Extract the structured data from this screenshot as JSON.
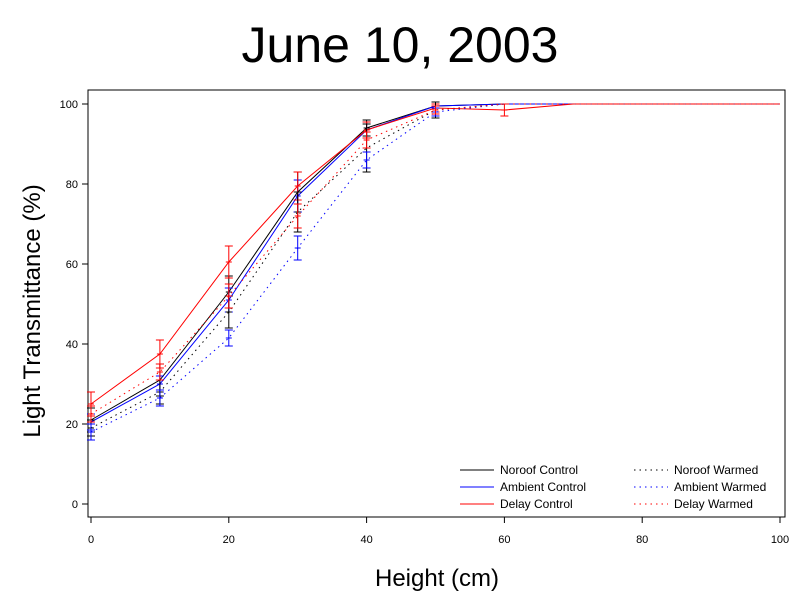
{
  "chart_data": {
    "type": "line",
    "title": "June 10, 2003",
    "xlabel": "Height (cm)",
    "ylabel": "Light Transmittance (%)",
    "xlim": [
      0,
      100
    ],
    "ylim": [
      0,
      100
    ],
    "xticks": [
      0,
      20,
      40,
      60,
      80,
      100
    ],
    "yticks": [
      0,
      20,
      40,
      60,
      80,
      100
    ],
    "grid": false,
    "legend_position": "bottom-right",
    "series": [
      {
        "name": "Noroof Control",
        "color": "#000000",
        "style": "solid",
        "x": [
          0,
          10,
          20,
          30,
          40,
          50,
          60,
          70,
          100
        ],
        "y": [
          21,
          31,
          53,
          78,
          94,
          99.5,
          100,
          100,
          100
        ],
        "err": [
          3,
          4,
          4,
          5,
          2,
          0.5,
          0,
          0,
          0
        ]
      },
      {
        "name": "Ambient Control",
        "color": "#0000ff",
        "style": "solid",
        "x": [
          0,
          10,
          20,
          30,
          40,
          50,
          60,
          70,
          100
        ],
        "y": [
          20.5,
          30,
          51,
          77,
          93.5,
          99.5,
          100,
          100,
          100
        ],
        "err": [
          2,
          2,
          3,
          4,
          2,
          0.5,
          0,
          0,
          0
        ]
      },
      {
        "name": "Delay Control",
        "color": "#ff0000",
        "style": "solid",
        "x": [
          0,
          10,
          20,
          30,
          40,
          50,
          60,
          70,
          100
        ],
        "y": [
          25,
          37.5,
          60.5,
          79.5,
          93.5,
          99,
          98.5,
          100,
          100
        ],
        "err": [
          3,
          3.5,
          4,
          3.5,
          2,
          1,
          1.5,
          0,
          0
        ]
      },
      {
        "name": "Noroof Warmed",
        "color": "#000000",
        "style": "dotted",
        "x": [
          0,
          10,
          20,
          30,
          40,
          50,
          60,
          70,
          100
        ],
        "y": [
          19,
          28,
          48,
          73,
          89,
          98.5,
          100,
          100,
          100
        ],
        "err": [
          2,
          3,
          4,
          5,
          6,
          2,
          0,
          0,
          0
        ]
      },
      {
        "name": "Ambient Warmed",
        "color": "#0000ff",
        "style": "dotted",
        "x": [
          0,
          10,
          20,
          30,
          40,
          50,
          60,
          70,
          100
        ],
        "y": [
          18,
          26.5,
          41.5,
          64,
          86,
          98,
          100,
          100,
          100
        ],
        "err": [
          2,
          2,
          2,
          3,
          2,
          1,
          0,
          0,
          0
        ]
      },
      {
        "name": "Delay Warmed",
        "color": "#ff0000",
        "style": "dotted",
        "x": [
          0,
          10,
          20,
          30,
          40,
          50,
          60,
          70,
          100
        ],
        "y": [
          22.5,
          33,
          52,
          72,
          91,
          98.5,
          100,
          100,
          100
        ],
        "err": [
          2,
          2,
          3,
          3,
          2,
          1,
          0,
          0,
          0
        ]
      }
    ]
  }
}
